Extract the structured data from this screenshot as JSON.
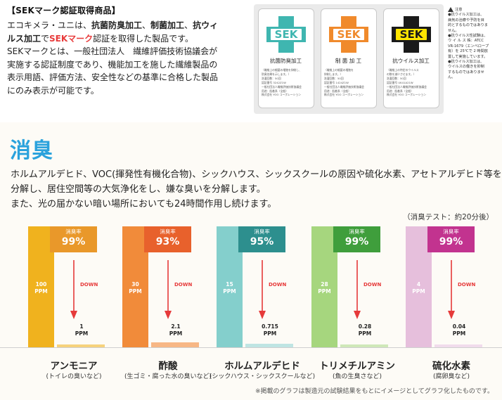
{
  "sek": {
    "heading": "【SEKマーク認証取得商品】",
    "lines": [
      {
        "pre": "エコキメラ・ユニは、",
        "b1": "抗菌防臭加工",
        "m1": "、",
        "b2": "制菌加工",
        "m2": "、",
        "b3": "抗ウィ"
      },
      {
        "b1": "ルス加工",
        "m1": "で",
        "red": "SEKマーク",
        "post": "認証を取得した製品です。"
      },
      {
        "text": "SEKマークとは、一般社団法人　繊維評価技術協議会が"
      },
      {
        "text": "実施する認証制度であり、機能加工を施した繊維製品の"
      },
      {
        "text": "表示用語、評価方法、安全性などの基準に合格した製品"
      },
      {
        "text": "にのみ表示が可能です。"
      }
    ],
    "cards": [
      {
        "logo": "SEK",
        "color": "#3fb6b0",
        "inner": "#ffffff",
        "text_color": "#3fb6b0",
        "caption": "抗菌防臭加工",
        "fine": [
          "（繊維上の細菌の増殖を抑制し、",
          "防臭効果を示します。）",
          "洗濯回数：50回",
          "認証番号 3242Z1W",
          "一般社団法人繊維評価技術協議会",
          "用途：肌着系（全般）",
          "株式会社 YOO コーポレーション"
        ]
      },
      {
        "logo": "SEK",
        "color": "#f08a2c",
        "inner": "#ffffff",
        "text_color": "#f08a2c",
        "caption": "制 菌 加 工",
        "fine": [
          "（繊維上の細菌の増殖を",
          "抑制します。）",
          "洗濯回数：50回",
          "認証番号 1424Z1W",
          "一般社団法人繊維評価技術協議会",
          "用途：肌着系（全般）",
          "株式会社 YOO コーポレーション"
        ]
      },
      {
        "logo": "SEK",
        "color": "#1a1a1a",
        "inner": "#ffe500",
        "text_color": "#1a1a1a",
        "caption": "抗ウイルス加工",
        "fine": [
          "（繊維上の特定のウイルス",
          "の数を減少させます。）",
          "洗濯回数：50回",
          "認証番号 UK41A21W",
          "一般社団法人繊維評価技術協議会",
          "用途：肌着系（全般）",
          "株式会社 YOO コーポレーション"
        ]
      }
    ],
    "notes": [
      "注意",
      "●抗ウイルス加工は、",
      "病気の治療や予防を目",
      "的とするものではありま",
      "せん。",
      "●抗ウイルス性試験は、",
      "ウ イ ル ス 株：ATCC",
      "VR-1679（エンベロープ",
      "有）を 25℃で 2 時間放",
      "置して実施しています。",
      "●抗ウイルス加工は、",
      "ウイルスの働きを抑制",
      "するものではありませ",
      "ん。"
    ]
  },
  "section_title": "消臭",
  "body_lines": [
    "ホルムアルデヒド、VOC(揮発性有機化合物)、シックハウス、シックスクールの原因や硫化水素、アセトアルデヒド等を",
    "分解し、居住空間等の大気浄化をし、嫌な臭いを分解します。",
    "また、光の届かない暗い場所においても24時間作用し続けます。"
  ],
  "test_note": "（消臭テスト：約20分後）",
  "footnote": "※掲載のグラフは製造元の試験結果をもとにイメージとしてグラフ化したものです。",
  "chart_data": {
    "type": "bar",
    "title": "",
    "unit": "PPM",
    "rate_label": "消臭率",
    "down_label": "DOWN",
    "categories": [
      {
        "name": "アンモニア",
        "sub": "(トイレの臭いなど)",
        "before": 100,
        "after": 1,
        "rate": "99%",
        "color": "#f0b21e",
        "light": "#f6d27c",
        "box": "#e9982a"
      },
      {
        "name": "酢酸",
        "sub": "(生ゴミ・腐った水の臭いなど)",
        "before": 30,
        "after": 2.1,
        "rate": "93%",
        "color": "#f18b3a",
        "light": "#f7b785",
        "box": "#e8612c"
      },
      {
        "name": "ホルムアルデヒド",
        "sub": "(シックハウス・シックスクールなど)",
        "before": 15,
        "after": 0.715,
        "rate": "95%",
        "color": "#84cfcc",
        "light": "#bfe5e3",
        "box": "#2d8f8e"
      },
      {
        "name": "トリメチルアミン",
        "sub": "(魚の生臭さなど)",
        "before": 28,
        "after": 0.28,
        "rate": "99%",
        "color": "#a6d67e",
        "light": "#cfe8b8",
        "box": "#3f9e3c"
      },
      {
        "name": "硫化水素",
        "sub": "(腐卵臭など)",
        "before": 4,
        "after": 0.04,
        "rate": "99%",
        "color": "#e6bfdc",
        "light": "#f1dcec",
        "box": "#c2338f"
      }
    ],
    "before_labels": [
      "100",
      "30",
      "15",
      "28",
      "4"
    ],
    "after_labels": [
      "1",
      "2.1",
      "0.715",
      "0.28",
      "0.04"
    ]
  }
}
